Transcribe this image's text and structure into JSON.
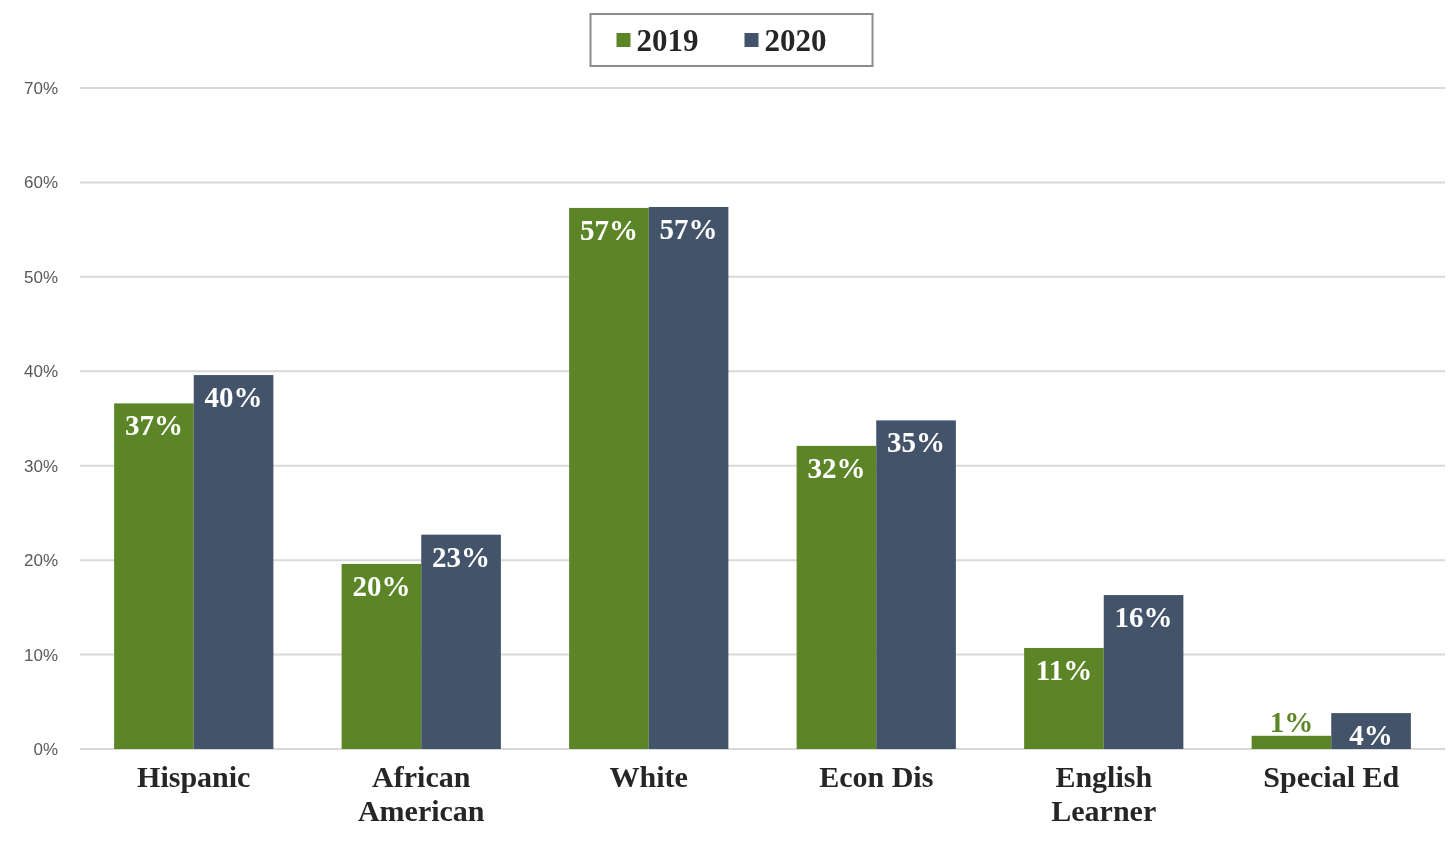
{
  "chart_data": {
    "type": "bar",
    "categories": [
      "Hispanic",
      "African American",
      "White",
      "Econ Dis",
      "English Learner",
      "Special Ed"
    ],
    "series": [
      {
        "name": "2019",
        "color": "#5b8527",
        "values": [
          36.6,
          19.6,
          57.3,
          32.1,
          10.7,
          1.4
        ],
        "value_labels": [
          "37%",
          "20%",
          "57%",
          "32%",
          "11%",
          "1%"
        ]
      },
      {
        "name": "2020",
        "color": "#435369",
        "values": [
          39.6,
          22.7,
          57.4,
          34.8,
          16.3,
          3.8
        ],
        "value_labels": [
          "40%",
          "23%",
          "57%",
          "35%",
          "16%",
          "4%"
        ]
      }
    ],
    "ylim": [
      0,
      70
    ],
    "yticks": [
      {
        "value": 0,
        "label": "0%"
      },
      {
        "value": 10,
        "label": "10%"
      },
      {
        "value": 20,
        "label": "20%"
      },
      {
        "value": 30,
        "label": "30%"
      },
      {
        "value": 40,
        "label": "40%"
      },
      {
        "value": 50,
        "label": "50%"
      },
      {
        "value": 60,
        "label": "60%"
      },
      {
        "value": 70,
        "label": "70%"
      }
    ],
    "grid": "y",
    "legend": "top"
  }
}
